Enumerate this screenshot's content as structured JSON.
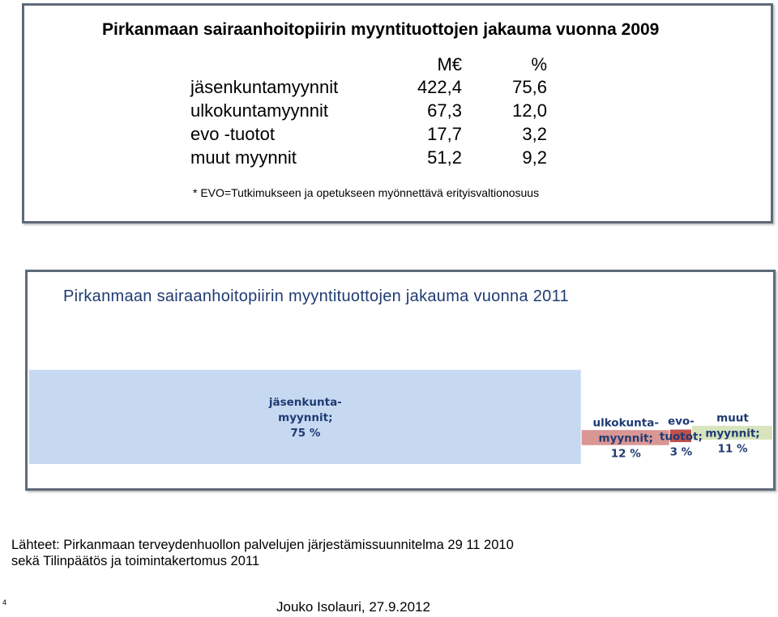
{
  "table_2009": {
    "title": "Pirkanmaan sairaanhoitopiirin myyntituottojen jakauma vuonna 2009",
    "col_me": "M€",
    "col_pct": "%",
    "rows": [
      {
        "label": "jäsenkuntamyynnit",
        "me": "422,4",
        "pct": "75,6"
      },
      {
        "label": "ulkokuntamyynnit",
        "me": "67,3",
        "pct": "12,0"
      },
      {
        "label": "evo -tuotot",
        "me": "17,7",
        "pct": "3,2"
      },
      {
        "label": "muut myynnit",
        "me": "51,2",
        "pct": "9,2"
      }
    ],
    "footnote": "* EVO=Tutkimukseen ja opetukseen myönnettävä erityisvaltionosuus"
  },
  "chart_data": {
    "type": "bar",
    "title": "Pirkanmaan sairaanhoitopiirin myyntituottojen jakauma vuonna 2011",
    "series": [
      {
        "label_lines": [
          "jäsenkunta-",
          "myynnit;",
          "75 %"
        ],
        "value": 75,
        "color": "#c6d9f1"
      },
      {
        "label_lines": [
          "ulkokunta-",
          "myynnit;",
          "12 %"
        ],
        "value": 12,
        "color": "#d99694"
      },
      {
        "label_lines": [
          "evo-",
          "tuotot;",
          "3 %"
        ],
        "value": 3,
        "color": "#c0504d"
      },
      {
        "label_lines": [
          "muut",
          "myynnit;",
          "11 %"
        ],
        "value": 11,
        "color": "#d7e4bd"
      }
    ],
    "label_color": "#1f3b73"
  },
  "sources": {
    "line1": "Lähteet: Pirkanmaan terveydenhuollon palvelujen järjestämissuunnitelma 29 11 2010",
    "line2": "sekä Tilinpäätös ja toimintakertomus 2011"
  },
  "page_number": "4",
  "author": "Jouko Isolauri, 27.9.2012"
}
